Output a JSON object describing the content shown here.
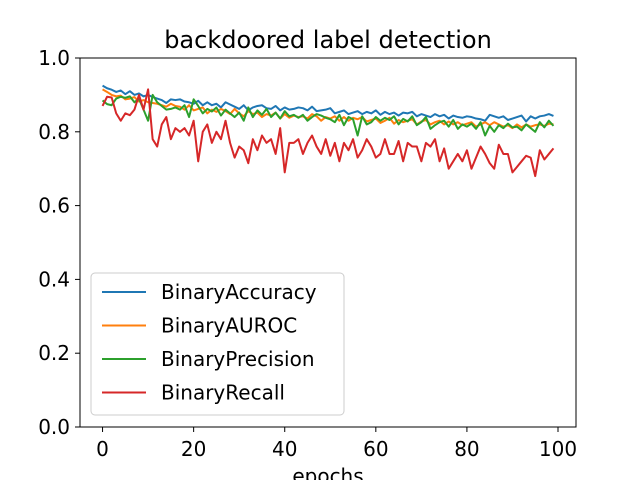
{
  "chart_data": {
    "type": "line",
    "title": "backdoored label detection",
    "xlabel": "epochs",
    "ylabel": "",
    "xlim": [
      -4.95,
      103.95
    ],
    "ylim": [
      0.0,
      1.0
    ],
    "xticks": [
      0,
      20,
      40,
      60,
      80,
      100
    ],
    "yticks": [
      0.0,
      0.2,
      0.4,
      0.6,
      0.8,
      1.0
    ],
    "xtick_labels": [
      "0",
      "20",
      "40",
      "60",
      "80",
      "100"
    ],
    "ytick_labels": [
      "0.0",
      "0.2",
      "0.4",
      "0.6",
      "0.8",
      "1.0"
    ],
    "grid": false,
    "legend_position": "lower-left",
    "x": [
      0,
      1,
      2,
      3,
      4,
      5,
      6,
      7,
      8,
      9,
      10,
      11,
      12,
      13,
      14,
      15,
      16,
      17,
      18,
      19,
      20,
      21,
      22,
      23,
      24,
      25,
      26,
      27,
      28,
      29,
      30,
      31,
      32,
      33,
      34,
      35,
      36,
      37,
      38,
      39,
      40,
      41,
      42,
      43,
      44,
      45,
      46,
      47,
      48,
      49,
      50,
      51,
      52,
      53,
      54,
      55,
      56,
      57,
      58,
      59,
      60,
      61,
      62,
      63,
      64,
      65,
      66,
      67,
      68,
      69,
      70,
      71,
      72,
      73,
      74,
      75,
      76,
      77,
      78,
      79,
      80,
      81,
      82,
      83,
      84,
      85,
      86,
      87,
      88,
      89,
      90,
      91,
      92,
      93,
      94,
      95,
      96,
      97,
      98,
      99
    ],
    "series": [
      {
        "name": "BinaryAccuracy",
        "color": "#1f77b4",
        "values": [
          0.925,
          0.918,
          0.914,
          0.908,
          0.912,
          0.902,
          0.91,
          0.9,
          0.904,
          0.896,
          0.9,
          0.894,
          0.89,
          0.886,
          0.878,
          0.888,
          0.886,
          0.888,
          0.882,
          0.88,
          0.876,
          0.884,
          0.872,
          0.88,
          0.872,
          0.876,
          0.866,
          0.88,
          0.874,
          0.868,
          0.862,
          0.872,
          0.858,
          0.866,
          0.87,
          0.872,
          0.864,
          0.862,
          0.87,
          0.858,
          0.866,
          0.86,
          0.862,
          0.866,
          0.864,
          0.858,
          0.868,
          0.856,
          0.858,
          0.86,
          0.864,
          0.85,
          0.854,
          0.858,
          0.848,
          0.852,
          0.856,
          0.848,
          0.854,
          0.85,
          0.858,
          0.846,
          0.854,
          0.848,
          0.852,
          0.844,
          0.852,
          0.85,
          0.854,
          0.842,
          0.848,
          0.844,
          0.84,
          0.848,
          0.842,
          0.846,
          0.836,
          0.844,
          0.84,
          0.838,
          0.842,
          0.84,
          0.836,
          0.834,
          0.83,
          0.846,
          0.842,
          0.838,
          0.842,
          0.832,
          0.836,
          0.84,
          0.844,
          0.828,
          0.842,
          0.836,
          0.842,
          0.844,
          0.848,
          0.843
        ]
      },
      {
        "name": "BinaryAUROC",
        "color": "#ff7f0e",
        "values": [
          0.915,
          0.908,
          0.9,
          0.896,
          0.898,
          0.888,
          0.89,
          0.894,
          0.882,
          0.886,
          0.88,
          0.878,
          0.876,
          0.872,
          0.868,
          0.876,
          0.87,
          0.868,
          0.86,
          0.872,
          0.858,
          0.862,
          0.866,
          0.85,
          0.86,
          0.854,
          0.862,
          0.856,
          0.848,
          0.862,
          0.85,
          0.842,
          0.856,
          0.848,
          0.852,
          0.84,
          0.848,
          0.844,
          0.852,
          0.836,
          0.848,
          0.838,
          0.844,
          0.84,
          0.842,
          0.836,
          0.848,
          0.842,
          0.83,
          0.84,
          0.836,
          0.842,
          0.83,
          0.84,
          0.83,
          0.838,
          0.834,
          0.84,
          0.828,
          0.832,
          0.836,
          0.824,
          0.83,
          0.838,
          0.822,
          0.832,
          0.826,
          0.83,
          0.834,
          0.82,
          0.828,
          0.832,
          0.82,
          0.826,
          0.83,
          0.82,
          0.828,
          0.82,
          0.826,
          0.818,
          0.822,
          0.826,
          0.814,
          0.82,
          0.826,
          0.818,
          0.826,
          0.82,
          0.814,
          0.818,
          0.81,
          0.82,
          0.812,
          0.82,
          0.814,
          0.818,
          0.82,
          0.816,
          0.822,
          0.82
        ]
      },
      {
        "name": "BinaryPrecision",
        "color": "#2ca02c",
        "values": [
          0.885,
          0.875,
          0.872,
          0.89,
          0.895,
          0.892,
          0.896,
          0.88,
          0.89,
          0.86,
          0.83,
          0.9,
          0.88,
          0.87,
          0.86,
          0.862,
          0.866,
          0.86,
          0.872,
          0.84,
          0.888,
          0.87,
          0.85,
          0.862,
          0.855,
          0.866,
          0.844,
          0.86,
          0.85,
          0.84,
          0.852,
          0.83,
          0.866,
          0.84,
          0.858,
          0.846,
          0.862,
          0.84,
          0.852,
          0.836,
          0.856,
          0.842,
          0.846,
          0.838,
          0.846,
          0.83,
          0.84,
          0.848,
          0.844,
          0.838,
          0.834,
          0.826,
          0.846,
          0.818,
          0.84,
          0.834,
          0.79,
          0.842,
          0.82,
          0.826,
          0.84,
          0.83,
          0.838,
          0.832,
          0.842,
          0.82,
          0.835,
          0.828,
          0.842,
          0.818,
          0.826,
          0.84,
          0.808,
          0.818,
          0.826,
          0.83,
          0.814,
          0.832,
          0.808,
          0.82,
          0.814,
          0.822,
          0.808,
          0.826,
          0.79,
          0.816,
          0.8,
          0.818,
          0.81,
          0.822,
          0.812,
          0.814,
          0.804,
          0.82,
          0.81,
          0.8,
          0.826,
          0.812,
          0.83,
          0.816
        ]
      },
      {
        "name": "BinaryRecall",
        "color": "#d62728",
        "values": [
          0.87,
          0.895,
          0.893,
          0.85,
          0.83,
          0.85,
          0.845,
          0.86,
          0.9,
          0.86,
          0.915,
          0.78,
          0.76,
          0.82,
          0.84,
          0.78,
          0.81,
          0.8,
          0.81,
          0.79,
          0.83,
          0.72,
          0.8,
          0.82,
          0.77,
          0.8,
          0.78,
          0.83,
          0.77,
          0.73,
          0.76,
          0.75,
          0.715,
          0.78,
          0.75,
          0.79,
          0.77,
          0.78,
          0.74,
          0.81,
          0.69,
          0.77,
          0.77,
          0.78,
          0.74,
          0.77,
          0.79,
          0.76,
          0.74,
          0.78,
          0.735,
          0.77,
          0.72,
          0.77,
          0.75,
          0.78,
          0.73,
          0.75,
          0.78,
          0.76,
          0.73,
          0.74,
          0.78,
          0.74,
          0.74,
          0.775,
          0.72,
          0.77,
          0.76,
          0.76,
          0.72,
          0.77,
          0.76,
          0.78,
          0.72,
          0.755,
          0.7,
          0.72,
          0.74,
          0.72,
          0.75,
          0.7,
          0.73,
          0.76,
          0.74,
          0.715,
          0.7,
          0.765,
          0.74,
          0.74,
          0.69,
          0.705,
          0.72,
          0.735,
          0.73,
          0.68,
          0.75,
          0.725,
          0.74,
          0.755
        ]
      }
    ]
  }
}
